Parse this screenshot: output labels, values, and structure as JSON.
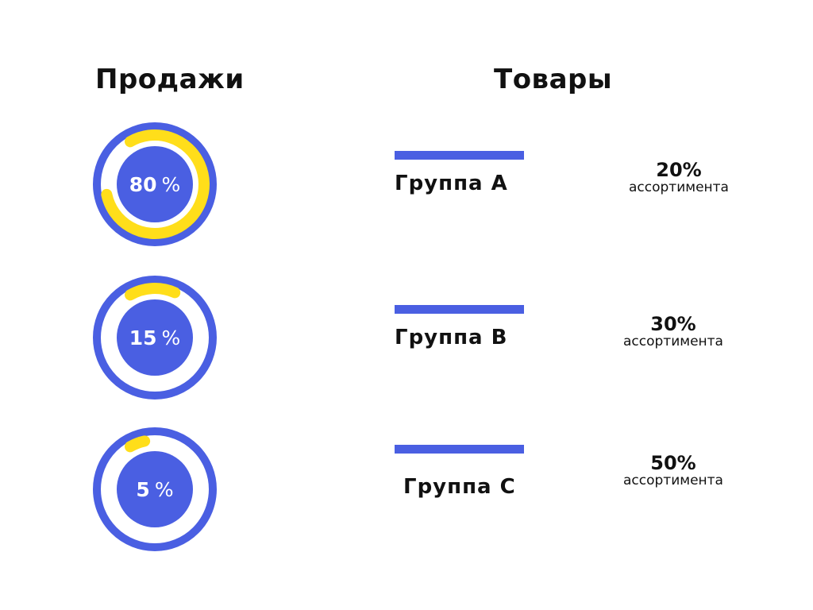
{
  "headings": {
    "sales": "Продажи",
    "goods": "Товары"
  },
  "colors": {
    "ring": "#4a5fe2",
    "progress": "#ffde1a",
    "bar": "#4a5fe2",
    "background": "#ffffff"
  },
  "chart_data": [
    {
      "type": "donut",
      "title": "Продажи",
      "items": [
        {
          "value": 80,
          "value_label": "80",
          "unit": "%"
        },
        {
          "value": 15,
          "value_label": "15",
          "unit": "%"
        },
        {
          "value": 5,
          "value_label": "5",
          "unit": "%"
        }
      ]
    },
    {
      "type": "table",
      "title": "Товары",
      "rows": [
        {
          "group": "Группа А",
          "share": "20%",
          "share_label": "ассортимента"
        },
        {
          "group": "Группа В",
          "share": "30%",
          "share_label": "ассортимента"
        },
        {
          "group": "Группа С",
          "share": "50%",
          "share_label": "ассортимента"
        }
      ]
    }
  ]
}
